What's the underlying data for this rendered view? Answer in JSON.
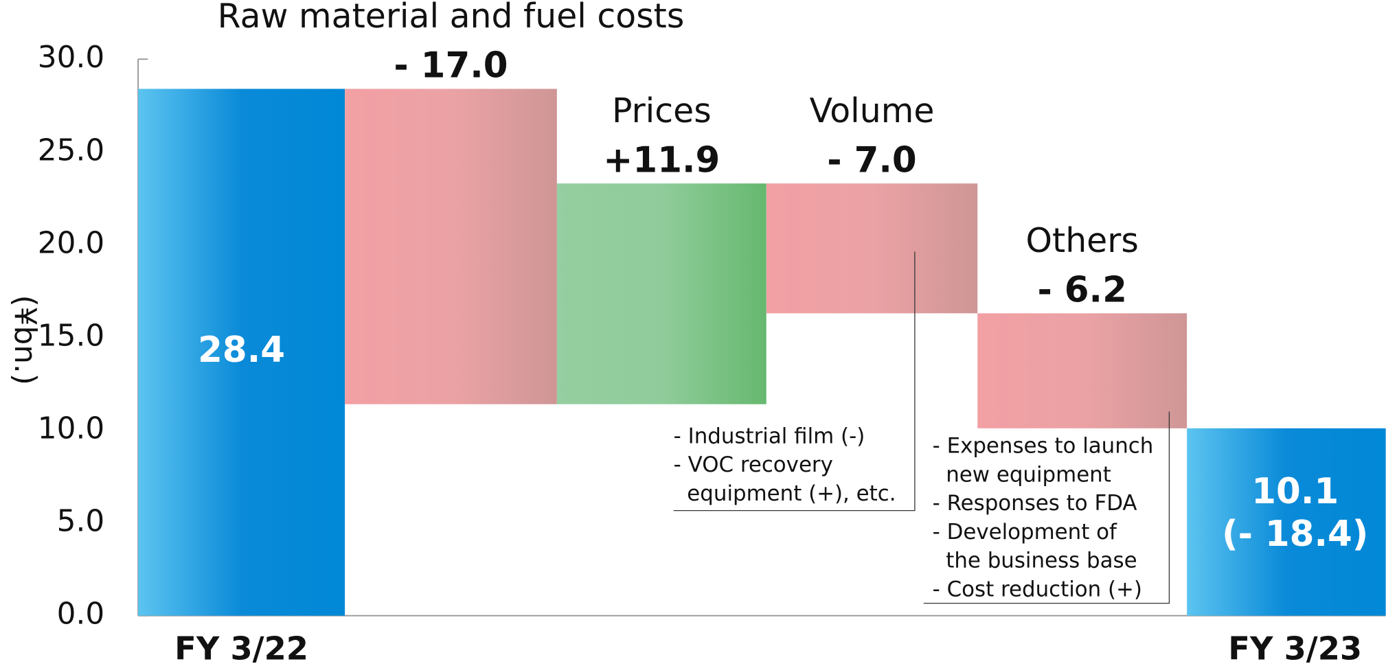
{
  "chart_data": {
    "type": "waterfall",
    "y_label": "(¥bn.)",
    "categories": [
      "FY 3/22",
      "Raw material and fuel costs",
      "Prices",
      "Volume",
      "Others",
      "FY 3/23"
    ],
    "measure": [
      "total",
      "relative",
      "relative",
      "relative",
      "relative",
      "total"
    ],
    "values": [
      28.4,
      -17.0,
      11.9,
      -7.0,
      -6.2,
      10.1
    ],
    "value_labels": [
      "28.4",
      "- 17.0",
      "+11.9",
      "- 7.0",
      "- 6.2",
      "10.1"
    ],
    "total_change_label": "(- 18.4)",
    "colors": {
      "total": "#0a8ad8",
      "increase": "#6cba76",
      "decrease": "#ee9fa2"
    },
    "ylim": [
      0,
      30
    ],
    "yticks": [
      {
        "value": 0,
        "label": "0.0"
      },
      {
        "value": 5,
        "label": "5.0"
      },
      {
        "value": 10,
        "label": "10.0"
      },
      {
        "value": 15,
        "label": "15.0"
      },
      {
        "value": 20,
        "label": "20.0"
      },
      {
        "value": 25,
        "label": "25.0"
      },
      {
        "value": 30,
        "label": "30.0"
      }
    ],
    "notes": [
      {
        "category": 3,
        "lines": [
          "- Industrial film (-)",
          "- VOC recovery",
          "  equipment (+), etc."
        ]
      },
      {
        "category": 4,
        "lines": [
          "- Expenses to launch",
          "  new equipment",
          "- Responses to FDA",
          "- Development of",
          "  the business base",
          "- Cost reduction (+)"
        ]
      }
    ]
  }
}
